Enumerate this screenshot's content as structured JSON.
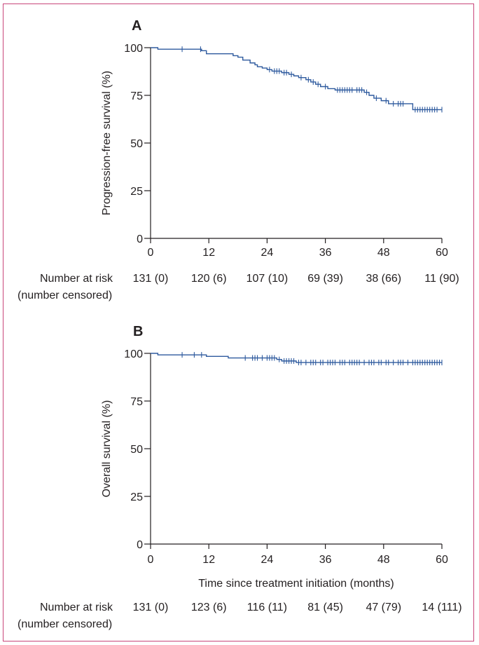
{
  "chart_data": [
    {
      "type": "line",
      "panel_letter": "A",
      "title": "",
      "xlabel": "",
      "ylabel": "Progression-free survival (%)",
      "xlim": [
        0,
        60
      ],
      "ylim": [
        0,
        100
      ],
      "x_ticks": [
        "0",
        "12",
        "24",
        "36",
        "48",
        "60"
      ],
      "y_ticks": [
        "0",
        "25",
        "50",
        "75",
        "100"
      ],
      "grid": false,
      "series": [
        {
          "name": "Progression-free survival",
          "steps": [
            [
              0,
              100
            ],
            [
              1.5,
              99.2
            ],
            [
              10.5,
              98.4
            ],
            [
              11.5,
              96.8
            ],
            [
              17,
              95.8
            ],
            [
              18,
              95.0
            ],
            [
              19,
              93.5
            ],
            [
              20.5,
              92.0
            ],
            [
              21.5,
              91.0
            ],
            [
              22,
              90.0
            ],
            [
              23,
              89.3
            ],
            [
              24,
              88.5
            ],
            [
              25,
              87.7
            ],
            [
              27,
              86.9
            ],
            [
              28.5,
              86.0
            ],
            [
              29.5,
              85.2
            ],
            [
              30.5,
              84.3
            ],
            [
              32,
              83.2
            ],
            [
              33,
              82.0
            ],
            [
              34,
              80.8
            ],
            [
              35,
              79.6
            ],
            [
              36.5,
              78.5
            ],
            [
              38,
              77.8
            ],
            [
              44,
              76.6
            ],
            [
              45,
              75.0
            ],
            [
              46,
              73.5
            ],
            [
              47.5,
              72.2
            ],
            [
              49,
              70.6
            ],
            [
              53,
              70.6
            ],
            [
              54,
              67.5
            ],
            [
              60,
              67.5
            ]
          ],
          "censored": [
            [
              6.5,
              99.2
            ],
            [
              10.3,
              99.2
            ],
            [
              24.5,
              88.5
            ],
            [
              25.5,
              87.7
            ],
            [
              26,
              87.7
            ],
            [
              26.5,
              87.7
            ],
            [
              27.5,
              86.9
            ],
            [
              28,
              86.9
            ],
            [
              29,
              86.0
            ],
            [
              31,
              84.3
            ],
            [
              32.5,
              83.2
            ],
            [
              33.5,
              82.0
            ],
            [
              34.5,
              80.8
            ],
            [
              36,
              79.6
            ],
            [
              38.5,
              77.8
            ],
            [
              39,
              77.8
            ],
            [
              39.5,
              77.8
            ],
            [
              40,
              77.8
            ],
            [
              40.5,
              77.8
            ],
            [
              41,
              77.8
            ],
            [
              41.5,
              77.8
            ],
            [
              42.5,
              77.8
            ],
            [
              43,
              77.8
            ],
            [
              43.5,
              77.8
            ],
            [
              44.5,
              76.6
            ],
            [
              46.5,
              73.5
            ],
            [
              48.5,
              72.2
            ],
            [
              50,
              70.6
            ],
            [
              51,
              70.6
            ],
            [
              51.5,
              70.6
            ],
            [
              52,
              70.6
            ],
            [
              54.5,
              67.5
            ],
            [
              55,
              67.5
            ],
            [
              55.5,
              67.5
            ],
            [
              56,
              67.5
            ],
            [
              56.5,
              67.5
            ],
            [
              57,
              67.5
            ],
            [
              57.5,
              67.5
            ],
            [
              58,
              67.5
            ],
            [
              58.5,
              67.5
            ],
            [
              59,
              67.5
            ],
            [
              60,
              67.5
            ]
          ]
        }
      ],
      "risk_table": {
        "label_line1": "Number at risk",
        "label_line2": "(number censored)",
        "values": [
          "131 (0)",
          "120 (6)",
          "107 (10)",
          "69 (39)",
          "38 (66)",
          "11 (90)"
        ]
      }
    },
    {
      "type": "line",
      "panel_letter": "B",
      "title": "",
      "xlabel": "Time since treatment initiation (months)",
      "ylabel": "Overall survival (%)",
      "xlim": [
        0,
        60
      ],
      "ylim": [
        0,
        100
      ],
      "x_ticks": [
        "0",
        "12",
        "24",
        "36",
        "48",
        "60"
      ],
      "y_ticks": [
        "0",
        "25",
        "50",
        "75",
        "100"
      ],
      "grid": false,
      "series": [
        {
          "name": "Overall survival",
          "steps": [
            [
              0,
              100
            ],
            [
              1.5,
              99.2
            ],
            [
              11.5,
              98.4
            ],
            [
              16,
              97.6
            ],
            [
              26,
              96.8
            ],
            [
              27,
              96.0
            ],
            [
              30,
              95.2
            ],
            [
              60,
              95.2
            ]
          ],
          "censored": [
            [
              6.5,
              99.2
            ],
            [
              9,
              99.2
            ],
            [
              10.5,
              99.2
            ],
            [
              19.5,
              97.6
            ],
            [
              21,
              97.6
            ],
            [
              21.5,
              97.6
            ],
            [
              22,
              97.6
            ],
            [
              23,
              97.6
            ],
            [
              24,
              97.6
            ],
            [
              24.5,
              97.6
            ],
            [
              25,
              97.6
            ],
            [
              25.5,
              97.6
            ],
            [
              26.5,
              96.8
            ],
            [
              27.5,
              96.0
            ],
            [
              28,
              96.0
            ],
            [
              28.5,
              96.0
            ],
            [
              29,
              96.0
            ],
            [
              29.5,
              96.0
            ],
            [
              30.5,
              95.2
            ],
            [
              31,
              95.2
            ],
            [
              32,
              95.2
            ],
            [
              33,
              95.2
            ],
            [
              33.5,
              95.2
            ],
            [
              34,
              95.2
            ],
            [
              35,
              95.2
            ],
            [
              35.5,
              95.2
            ],
            [
              36.5,
              95.2
            ],
            [
              37,
              95.2
            ],
            [
              37.5,
              95.2
            ],
            [
              38,
              95.2
            ],
            [
              39,
              95.2
            ],
            [
              39.5,
              95.2
            ],
            [
              40,
              95.2
            ],
            [
              41,
              95.2
            ],
            [
              41.5,
              95.2
            ],
            [
              42,
              95.2
            ],
            [
              42.5,
              95.2
            ],
            [
              43,
              95.2
            ],
            [
              44,
              95.2
            ],
            [
              45,
              95.2
            ],
            [
              45.5,
              95.2
            ],
            [
              46,
              95.2
            ],
            [
              47,
              95.2
            ],
            [
              47.5,
              95.2
            ],
            [
              48.5,
              95.2
            ],
            [
              49,
              95.2
            ],
            [
              50,
              95.2
            ],
            [
              51,
              95.2
            ],
            [
              51.5,
              95.2
            ],
            [
              52,
              95.2
            ],
            [
              53,
              95.2
            ],
            [
              54,
              95.2
            ],
            [
              54.5,
              95.2
            ],
            [
              55,
              95.2
            ],
            [
              55.5,
              95.2
            ],
            [
              56,
              95.2
            ],
            [
              56.5,
              95.2
            ],
            [
              57,
              95.2
            ],
            [
              57.5,
              95.2
            ],
            [
              58,
              95.2
            ],
            [
              58.5,
              95.2
            ],
            [
              59,
              95.2
            ],
            [
              59.5,
              95.2
            ],
            [
              60,
              95.2
            ]
          ]
        }
      ],
      "risk_table": {
        "label_line1": "Number at risk",
        "label_line2": "(number censored)",
        "values": [
          "131 (0)",
          "123 (6)",
          "116 (11)",
          "81 (45)",
          "47 (79)",
          "14 (111)"
        ]
      }
    }
  ]
}
